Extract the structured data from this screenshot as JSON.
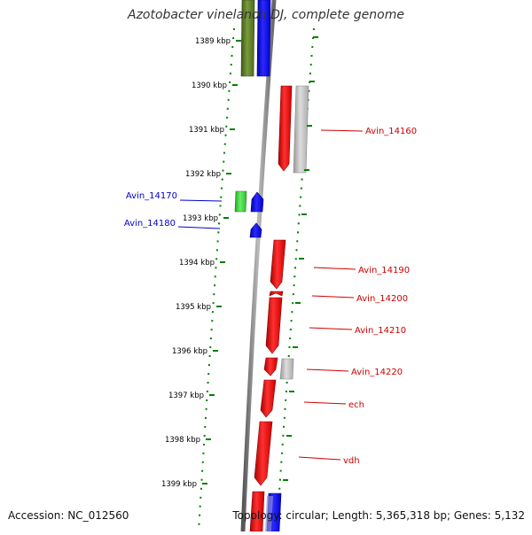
{
  "title": "Azotobacter vinelandii DJ, complete genome",
  "ticks": [
    "1389 kbp",
    "1390 kbp",
    "1391 kbp",
    "1392 kbp",
    "1393 kbp",
    "1394 kbp",
    "1395 kbp",
    "1396 kbp",
    "1397 kbp",
    "1398 kbp",
    "1399 kbp"
  ],
  "left_labels": [
    "Avin_14170",
    "Avin_14180"
  ],
  "right_labels": [
    "Avin_14160",
    "Avin_14190",
    "Avin_14200",
    "Avin_14210",
    "Avin_14220",
    "ech",
    "vdh"
  ],
  "footer": {
    "accession": "Accession: NC_012560",
    "summary": "Topology: circular; Length: 5,365,318 bp; Genes: 5,132"
  },
  "colors": {
    "forward_label": "#cc0000",
    "reverse_label": "#0000cc",
    "tick": "#008000",
    "red_gene": "#ff0000",
    "blue_gene": "#0000ff",
    "green_gene": "#33cc33",
    "olive_gene": "#556b2f",
    "gray_gene": "#bbbbbb"
  }
}
